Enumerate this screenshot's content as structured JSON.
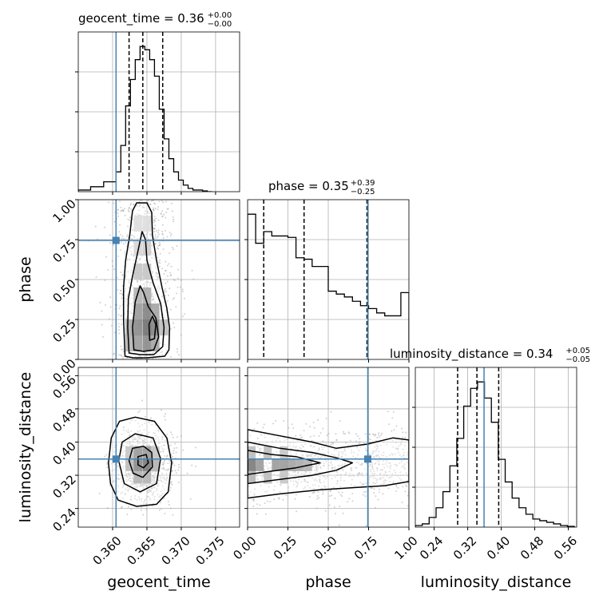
{
  "chart_data": {
    "type": "corner",
    "parameters": [
      {
        "name": "geocent_time",
        "axis_label": "geocent_time",
        "range": [
          0.355,
          0.3785
        ],
        "ticks": [
          0.36,
          0.365,
          0.37,
          0.375
        ],
        "tick_labels": [
          "0.360",
          "0.365",
          "0.370",
          "0.375"
        ],
        "truth": 0.3605,
        "quantiles": [
          0.3624,
          0.3644,
          0.3673
        ],
        "title_main": "geocent_time = 0.36",
        "title_plus": "+0.00",
        "title_minus": "−0.00",
        "hist_bins": [
          0.355,
          0.3568,
          0.3587,
          0.3605,
          0.3612,
          0.3619,
          0.3626,
          0.3633,
          0.364,
          0.3647,
          0.3654,
          0.3661,
          0.3668,
          0.3675,
          0.3682,
          0.3689,
          0.3696,
          0.3703,
          0.371,
          0.3717,
          0.3724,
          0.3731,
          0.3738,
          0.3745
        ],
        "hist_counts": [
          1,
          3,
          6,
          12,
          28,
          52,
          68,
          80,
          88,
          86,
          80,
          70,
          50,
          32,
          20,
          12,
          7,
          4,
          2,
          1,
          1,
          0.5,
          0
        ]
      },
      {
        "name": "phase",
        "axis_label": "phase",
        "range": [
          0.0,
          1.0
        ],
        "ticks": [
          0.0,
          0.25,
          0.5,
          0.75,
          1.0
        ],
        "tick_labels": [
          "0.00",
          "0.25",
          "0.50",
          "0.75",
          "1.00"
        ],
        "truth": 0.745,
        "quantiles": [
          0.1,
          0.35,
          0.74
        ],
        "title_main": "phase = 0.35",
        "title_plus": "+0.39",
        "title_minus": "−0.25",
        "hist_bins": [
          0.0,
          0.05,
          0.1,
          0.15,
          0.25,
          0.3,
          0.35,
          0.4,
          0.45,
          0.5,
          0.55,
          0.6,
          0.65,
          0.7,
          0.75,
          0.8,
          0.85,
          0.9,
          0.95,
          1.0
        ],
        "hist_counts": [
          100,
          80,
          88,
          85,
          84,
          70,
          69,
          64,
          64,
          47,
          45,
          43,
          40,
          37,
          35,
          32,
          30,
          30,
          46
        ]
      },
      {
        "name": "luminosity_distance",
        "axis_label": "luminosity_distance",
        "range": [
          0.195,
          0.58
        ],
        "ticks": [
          0.24,
          0.32,
          0.4,
          0.48,
          0.56
        ],
        "tick_labels": [
          "0.24",
          "0.32",
          "0.40",
          "0.48",
          "0.56"
        ],
        "truth": 0.359,
        "quantiles": [
          0.296,
          0.342,
          0.394
        ],
        "title_main": "luminosity_distance = 0.34",
        "title_plus": "+0.05",
        "title_minus": "−0.05",
        "hist_bins": [
          0.195,
          0.2115,
          0.228,
          0.2445,
          0.261,
          0.2775,
          0.294,
          0.3105,
          0.327,
          0.3435,
          0.36,
          0.3765,
          0.393,
          0.4095,
          0.426,
          0.4425,
          0.459,
          0.4755,
          0.492,
          0.5085,
          0.525,
          0.5415,
          0.558,
          0.5745
        ],
        "hist_counts": [
          1,
          2,
          6,
          12,
          22,
          38,
          55,
          75,
          86,
          90,
          80,
          65,
          42,
          28,
          18,
          12,
          8,
          5,
          4,
          3,
          2,
          1,
          0.5
        ]
      }
    ],
    "contours_2d": [
      {
        "x": "geocent_time",
        "y": "phase",
        "levels": [
          [
            [
              0.3618,
              0.02
            ],
            [
              0.3616,
              0.25
            ],
            [
              0.3616,
              0.45
            ],
            [
              0.3619,
              0.62
            ],
            [
              0.3625,
              0.78
            ],
            [
              0.3629,
              0.93
            ],
            [
              0.3635,
              0.98
            ],
            [
              0.365,
              0.98
            ],
            [
              0.3657,
              0.92
            ],
            [
              0.3658,
              0.78
            ],
            [
              0.3664,
              0.62
            ],
            [
              0.3672,
              0.45
            ],
            [
              0.3679,
              0.32
            ],
            [
              0.3683,
              0.2
            ],
            [
              0.3682,
              0.06
            ],
            [
              0.3676,
              0.02
            ],
            [
              0.365,
              0.01
            ],
            [
              0.363,
              0.01
            ]
          ],
          [
            [
              0.3624,
              0.04
            ],
            [
              0.3622,
              0.2
            ],
            [
              0.3623,
              0.38
            ],
            [
              0.3629,
              0.52
            ],
            [
              0.3637,
              0.68
            ],
            [
              0.3643,
              0.8
            ],
            [
              0.3648,
              0.75
            ],
            [
              0.365,
              0.62
            ],
            [
              0.3659,
              0.48
            ],
            [
              0.367,
              0.35
            ],
            [
              0.3675,
              0.2
            ],
            [
              0.3673,
              0.08
            ],
            [
              0.366,
              0.03
            ],
            [
              0.364,
              0.03
            ]
          ],
          [
            [
              0.3631,
              0.06
            ],
            [
              0.3629,
              0.2
            ],
            [
              0.3633,
              0.36
            ],
            [
              0.364,
              0.46
            ],
            [
              0.3645,
              0.42
            ],
            [
              0.3652,
              0.33
            ],
            [
              0.3663,
              0.26
            ],
            [
              0.3667,
              0.14
            ],
            [
              0.366,
              0.06
            ],
            [
              0.3645,
              0.05
            ]
          ],
          [
            [
              0.3654,
              0.12
            ],
            [
              0.3653,
              0.22
            ],
            [
              0.3658,
              0.27
            ],
            [
              0.3663,
              0.22
            ],
            [
              0.3661,
              0.13
            ]
          ]
        ],
        "truth": [
          0.3605,
          0.745
        ],
        "cells": [
          [
            0.3625,
            0.1,
            0.45
          ],
          [
            0.3637,
            0.1,
            0.6
          ],
          [
            0.365,
            0.1,
            0.7
          ],
          [
            0.3662,
            0.1,
            0.55
          ],
          [
            0.3625,
            0.2,
            0.5
          ],
          [
            0.3637,
            0.2,
            0.7
          ],
          [
            0.365,
            0.2,
            0.85
          ],
          [
            0.3662,
            0.2,
            0.75
          ],
          [
            0.3675,
            0.2,
            0.4
          ],
          [
            0.3637,
            0.3,
            0.6
          ],
          [
            0.365,
            0.3,
            0.75
          ],
          [
            0.3662,
            0.3,
            0.55
          ],
          [
            0.3637,
            0.4,
            0.45
          ],
          [
            0.365,
            0.4,
            0.5
          ],
          [
            0.3637,
            0.55,
            0.35
          ],
          [
            0.365,
            0.55,
            0.35
          ],
          [
            0.3637,
            0.7,
            0.25
          ],
          [
            0.365,
            0.7,
            0.3
          ],
          [
            0.3637,
            0.85,
            0.2
          ],
          [
            0.365,
            0.85,
            0.2
          ]
        ]
      },
      {
        "x": "geocent_time",
        "y": "luminosity_distance",
        "levels": [
          [
            [
              0.3594,
              0.35
            ],
            [
              0.3598,
              0.41
            ],
            [
              0.361,
              0.45
            ],
            [
              0.3633,
              0.46
            ],
            [
              0.3661,
              0.45
            ],
            [
              0.3679,
              0.41
            ],
            [
              0.3686,
              0.35
            ],
            [
              0.3681,
              0.28
            ],
            [
              0.3664,
              0.25
            ],
            [
              0.3635,
              0.245
            ],
            [
              0.3608,
              0.26
            ],
            [
              0.3597,
              0.3
            ]
          ],
          [
            [
              0.3609,
              0.355
            ],
            [
              0.3614,
              0.4
            ],
            [
              0.3633,
              0.42
            ],
            [
              0.3659,
              0.41
            ],
            [
              0.367,
              0.36
            ],
            [
              0.3664,
              0.3
            ],
            [
              0.364,
              0.28
            ],
            [
              0.3617,
              0.3
            ]
          ],
          [
            [
              0.3624,
              0.355
            ],
            [
              0.3629,
              0.385
            ],
            [
              0.3645,
              0.39
            ],
            [
              0.3657,
              0.375
            ],
            [
              0.3658,
              0.34
            ],
            [
              0.3644,
              0.315
            ],
            [
              0.363,
              0.325
            ]
          ],
          [
            [
              0.3637,
              0.345
            ],
            [
              0.3637,
              0.365
            ],
            [
              0.3649,
              0.37
            ],
            [
              0.3652,
              0.35
            ],
            [
              0.3645,
              0.338
            ]
          ]
        ],
        "truth": [
          0.3605,
          0.359
        ],
        "cells": [
          [
            0.3625,
            0.345,
            0.4
          ],
          [
            0.3637,
            0.345,
            0.7
          ],
          [
            0.365,
            0.345,
            0.8
          ],
          [
            0.3662,
            0.345,
            0.45
          ],
          [
            0.3625,
            0.375,
            0.35
          ],
          [
            0.3637,
            0.375,
            0.6
          ],
          [
            0.365,
            0.375,
            0.6
          ],
          [
            0.3662,
            0.375,
            0.35
          ],
          [
            0.3637,
            0.315,
            0.45
          ],
          [
            0.365,
            0.315,
            0.45
          ]
        ]
      },
      {
        "x": "phase",
        "y": "luminosity_distance",
        "levels": [
          [
            [
              0.0,
              0.43
            ],
            [
              0.2,
              0.415
            ],
            [
              0.4,
              0.4
            ],
            [
              0.55,
              0.385
            ],
            [
              0.74,
              0.395
            ],
            [
              0.9,
              0.41
            ],
            [
              1.0,
              0.405
            ],
            [
              1.0,
              0.305
            ],
            [
              0.85,
              0.295
            ],
            [
              0.65,
              0.29
            ],
            [
              0.45,
              0.285
            ],
            [
              0.2,
              0.275
            ],
            [
              0.0,
              0.265
            ]
          ],
          [
            [
              0.0,
              0.4
            ],
            [
              0.2,
              0.385
            ],
            [
              0.4,
              0.375
            ],
            [
              0.55,
              0.362
            ],
            [
              0.65,
              0.35
            ],
            [
              0.55,
              0.332
            ],
            [
              0.4,
              0.32
            ],
            [
              0.2,
              0.31
            ],
            [
              0.0,
              0.3
            ]
          ],
          [
            [
              0.0,
              0.38
            ],
            [
              0.15,
              0.37
            ],
            [
              0.3,
              0.365
            ],
            [
              0.45,
              0.35
            ],
            [
              0.3,
              0.338
            ],
            [
              0.15,
              0.33
            ],
            [
              0.0,
              0.322
            ]
          ]
        ],
        "truth": [
          0.745,
          0.359
        ],
        "cells": [
          [
            0.025,
            0.345,
            0.8
          ],
          [
            0.075,
            0.345,
            0.6
          ],
          [
            0.175,
            0.345,
            0.6
          ],
          [
            0.225,
            0.345,
            0.6
          ],
          [
            0.275,
            0.345,
            0.55
          ],
          [
            0.325,
            0.345,
            0.5
          ],
          [
            0.375,
            0.345,
            0.45
          ],
          [
            0.025,
            0.375,
            0.4
          ],
          [
            0.125,
            0.375,
            0.4
          ],
          [
            0.225,
            0.375,
            0.35
          ],
          [
            0.025,
            0.315,
            0.45
          ],
          [
            0.125,
            0.315,
            0.4
          ],
          [
            0.225,
            0.315,
            0.35
          ]
        ]
      }
    ],
    "truth_color": "#4682b4",
    "hist_color": "#000000",
    "grid": true
  }
}
